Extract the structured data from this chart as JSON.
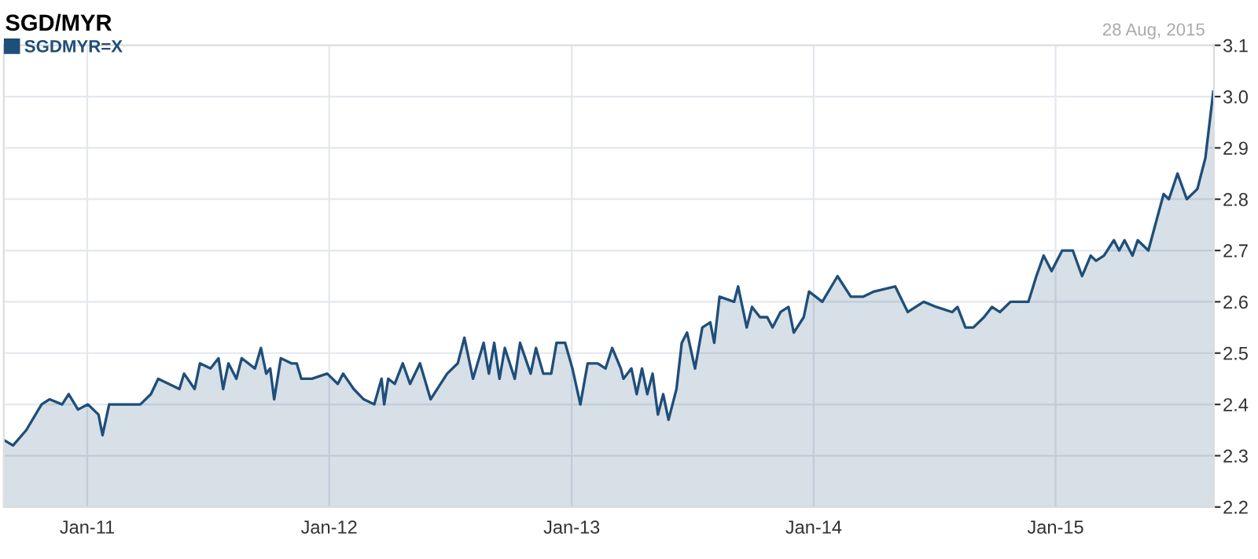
{
  "chart_data": {
    "type": "area",
    "title": "SGD/MYR",
    "annotations": [
      "28 Aug, 2015"
    ],
    "legend": "top left",
    "grid": true,
    "xlim": [
      "2010-08-28",
      "2015-08-28"
    ],
    "xticks": [
      {
        "value": "2011-01-01",
        "label": "Jan-11"
      },
      {
        "value": "2012-01-01",
        "label": "Jan-12"
      },
      {
        "value": "2013-01-01",
        "label": "Jan-13"
      },
      {
        "value": "2014-01-01",
        "label": "Jan-14"
      },
      {
        "value": "2015-01-01",
        "label": "Jan-15"
      }
    ],
    "ylim": [
      2.2,
      3.1
    ],
    "yticks": [
      {
        "value": 2.2,
        "label": "2.2"
      },
      {
        "value": 2.3,
        "label": "2.3"
      },
      {
        "value": 2.4,
        "label": "2.4"
      },
      {
        "value": 2.5,
        "label": "2.5"
      },
      {
        "value": 2.6,
        "label": "2.6"
      },
      {
        "value": 2.7,
        "label": "2.7"
      },
      {
        "value": 2.8,
        "label": "2.8"
      },
      {
        "value": 2.9,
        "label": "2.9"
      },
      {
        "value": 3.0,
        "label": "3.0"
      },
      {
        "value": 3.1,
        "label": "3.1"
      }
    ],
    "x": [
      "2010-08-29",
      "2010-09-11",
      "2010-10-01",
      "2010-10-24",
      "2010-11-05",
      "2010-11-24",
      "2010-12-04",
      "2010-12-18",
      "2011-01-02",
      "2011-01-18",
      "2011-01-24",
      "2011-02-03",
      "2011-03-06",
      "2011-03-22",
      "2011-04-07",
      "2011-04-18",
      "2011-05-04",
      "2011-05-20",
      "2011-05-27",
      "2011-06-12",
      "2011-06-20",
      "2011-07-06",
      "2011-07-18",
      "2011-07-25",
      "2011-08-02",
      "2011-08-14",
      "2011-08-22",
      "2011-09-11",
      "2011-09-20",
      "2011-09-28",
      "2011-10-04",
      "2011-10-10",
      "2011-10-20",
      "2011-11-05",
      "2011-11-13",
      "2011-11-20",
      "2011-12-06",
      "2011-12-29",
      "2012-01-14",
      "2012-01-22",
      "2012-02-07",
      "2012-02-22",
      "2012-03-09",
      "2012-03-20",
      "2012-03-24",
      "2012-03-30",
      "2012-04-09",
      "2012-04-21",
      "2012-05-02",
      "2012-05-17",
      "2012-06-02",
      "2012-06-27",
      "2012-07-13",
      "2012-07-23",
      "2012-08-05",
      "2012-08-21",
      "2012-08-29",
      "2012-09-06",
      "2012-09-14",
      "2012-09-22",
      "2012-10-07",
      "2012-10-15",
      "2012-10-31",
      "2012-11-08",
      "2012-11-19",
      "2012-12-01",
      "2012-12-09",
      "2012-12-22",
      "2013-01-02",
      "2013-01-14",
      "2013-01-25",
      "2013-02-09",
      "2013-02-21",
      "2013-03-03",
      "2013-03-16",
      "2013-03-20",
      "2013-04-01",
      "2013-04-09",
      "2013-04-17",
      "2013-04-25",
      "2013-05-03",
      "2013-05-11",
      "2013-05-19",
      "2013-05-27",
      "2013-06-08",
      "2013-06-16",
      "2013-06-24",
      "2013-07-06",
      "2013-07-17",
      "2013-07-29",
      "2013-08-04",
      "2013-08-12",
      "2013-09-03",
      "2013-09-09",
      "2013-09-22",
      "2013-09-30",
      "2013-10-12",
      "2013-10-23",
      "2013-10-31",
      "2013-11-12",
      "2013-11-24",
      "2013-12-02",
      "2013-12-17",
      "2013-12-25",
      "2014-01-14",
      "2014-02-06",
      "2014-02-26",
      "2014-03-17",
      "2014-04-02",
      "2014-05-04",
      "2014-05-23",
      "2014-06-04",
      "2014-06-16",
      "2014-07-05",
      "2014-07-29",
      "2014-08-06",
      "2014-08-18",
      "2014-08-30",
      "2014-09-15",
      "2014-09-27",
      "2014-10-09",
      "2014-10-25",
      "2014-11-21",
      "2014-12-03",
      "2014-12-14",
      "2014-12-26",
      "2015-01-11",
      "2015-01-27",
      "2015-02-10",
      "2015-02-23",
      "2015-03-03",
      "2015-03-15",
      "2015-03-30",
      "2015-04-07",
      "2015-04-15",
      "2015-04-27",
      "2015-05-05",
      "2015-05-21",
      "2015-06-13",
      "2015-06-21",
      "2015-07-04",
      "2015-07-18",
      "2015-08-03",
      "2015-08-15",
      "2015-08-27"
    ],
    "series": [
      {
        "name": "SGDMYR=X",
        "color": "#1f4e79",
        "values": [
          2.33,
          2.32,
          2.35,
          2.4,
          2.41,
          2.4,
          2.42,
          2.39,
          2.4,
          2.38,
          2.34,
          2.4,
          2.4,
          2.4,
          2.42,
          2.45,
          2.44,
          2.43,
          2.46,
          2.43,
          2.48,
          2.47,
          2.49,
          2.43,
          2.48,
          2.45,
          2.49,
          2.47,
          2.51,
          2.46,
          2.47,
          2.41,
          2.49,
          2.48,
          2.48,
          2.45,
          2.45,
          2.46,
          2.44,
          2.46,
          2.43,
          2.41,
          2.4,
          2.45,
          2.4,
          2.45,
          2.44,
          2.48,
          2.44,
          2.48,
          2.41,
          2.46,
          2.48,
          2.53,
          2.45,
          2.52,
          2.46,
          2.52,
          2.45,
          2.51,
          2.45,
          2.52,
          2.46,
          2.51,
          2.46,
          2.46,
          2.52,
          2.52,
          2.47,
          2.4,
          2.48,
          2.48,
          2.47,
          2.51,
          2.47,
          2.45,
          2.47,
          2.42,
          2.47,
          2.42,
          2.46,
          2.38,
          2.42,
          2.37,
          2.43,
          2.52,
          2.54,
          2.47,
          2.55,
          2.56,
          2.52,
          2.61,
          2.6,
          2.63,
          2.55,
          2.59,
          2.57,
          2.57,
          2.55,
          2.58,
          2.59,
          2.54,
          2.57,
          2.62,
          2.6,
          2.65,
          2.61,
          2.61,
          2.62,
          2.63,
          2.58,
          2.59,
          2.6,
          2.59,
          2.58,
          2.59,
          2.55,
          2.55,
          2.57,
          2.59,
          2.58,
          2.6,
          2.6,
          2.65,
          2.69,
          2.66,
          2.7,
          2.7,
          2.65,
          2.69,
          2.68,
          2.69,
          2.72,
          2.7,
          2.72,
          2.69,
          2.72,
          2.7,
          2.81,
          2.8,
          2.85,
          2.8,
          2.82,
          2.88,
          3.01
        ]
      }
    ]
  }
}
